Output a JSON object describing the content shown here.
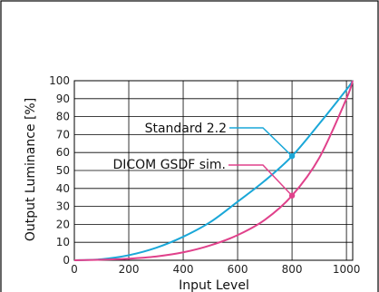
{
  "chart_data": {
    "type": "line",
    "xlabel": "Input Level",
    "ylabel": "Output Luminance [%]",
    "xlim": [
      0,
      1023
    ],
    "ylim": [
      0,
      100
    ],
    "x_ticks": [
      0,
      200,
      400,
      600,
      800,
      1000
    ],
    "y_ticks": [
      0,
      10,
      20,
      30,
      40,
      50,
      60,
      70,
      80,
      90,
      100
    ],
    "grid": true,
    "series": [
      {
        "name": "Standard 2.2",
        "color": "#1aa7d8",
        "x": [
          0,
          100,
          200,
          300,
          400,
          500,
          600,
          700,
          800,
          900,
          1000,
          1023
        ],
        "y": [
          0,
          0.6,
          2.8,
          6.9,
          13.1,
          21.3,
          32.6,
          44.3,
          58.0,
          76.0,
          95.0,
          100
        ]
      },
      {
        "name": "DICOM GSDF sim.",
        "color": "#e0418b",
        "x": [
          0,
          100,
          200,
          300,
          400,
          500,
          600,
          700,
          800,
          900,
          1000,
          1023
        ],
        "y": [
          0,
          0.3,
          0.9,
          2.1,
          4.4,
          8.3,
          14.0,
          22.5,
          36.0,
          57.0,
          90.0,
          100
        ]
      }
    ],
    "annotations": [
      {
        "text": "Standard 2.2",
        "series": 0,
        "x": 800,
        "y": 58
      },
      {
        "text": "DICOM GSDF sim.",
        "series": 1,
        "x": 800,
        "y": 36
      }
    ]
  }
}
